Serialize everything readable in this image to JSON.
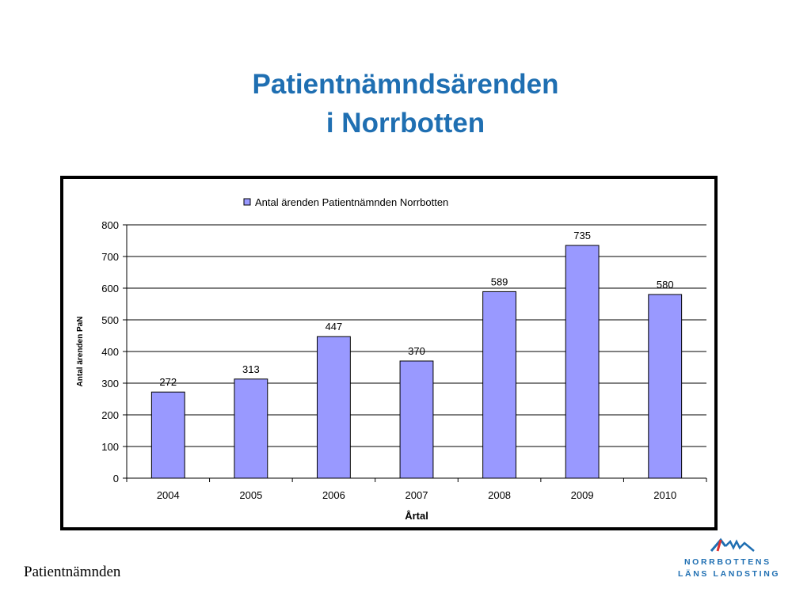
{
  "slide": {
    "title_line1": "Patientnämndsärenden",
    "title_line2": "i Norrbotten",
    "footer": "Patientnämnden",
    "logo_line1": "NORRBOTTENS",
    "logo_line2": "LÄNS LANDSTING"
  },
  "colors": {
    "title": "#1f6fb2",
    "bar_fill": "#9999ff",
    "bar_stroke": "#000000",
    "logo": "#1f6fb2"
  },
  "chart_data": {
    "type": "bar",
    "title": "",
    "categories": [
      "2004",
      "2005",
      "2006",
      "2007",
      "2008",
      "2009",
      "2010"
    ],
    "series": [
      {
        "name": "Antal ärenden Patientnämnden Norrbotten",
        "values": [
          272,
          313,
          447,
          370,
          589,
          735,
          580
        ]
      }
    ],
    "data_labels": [
      "272",
      "313",
      "447",
      "370",
      "589",
      "735",
      "580"
    ],
    "xlabel": "Årtal",
    "ylabel": "Antal ärenden PaN",
    "ylim": [
      0,
      800
    ],
    "yticks": [
      "0",
      "100",
      "200",
      "300",
      "400",
      "500",
      "600",
      "700",
      "800"
    ],
    "grid": true,
    "legend_position": "top"
  }
}
